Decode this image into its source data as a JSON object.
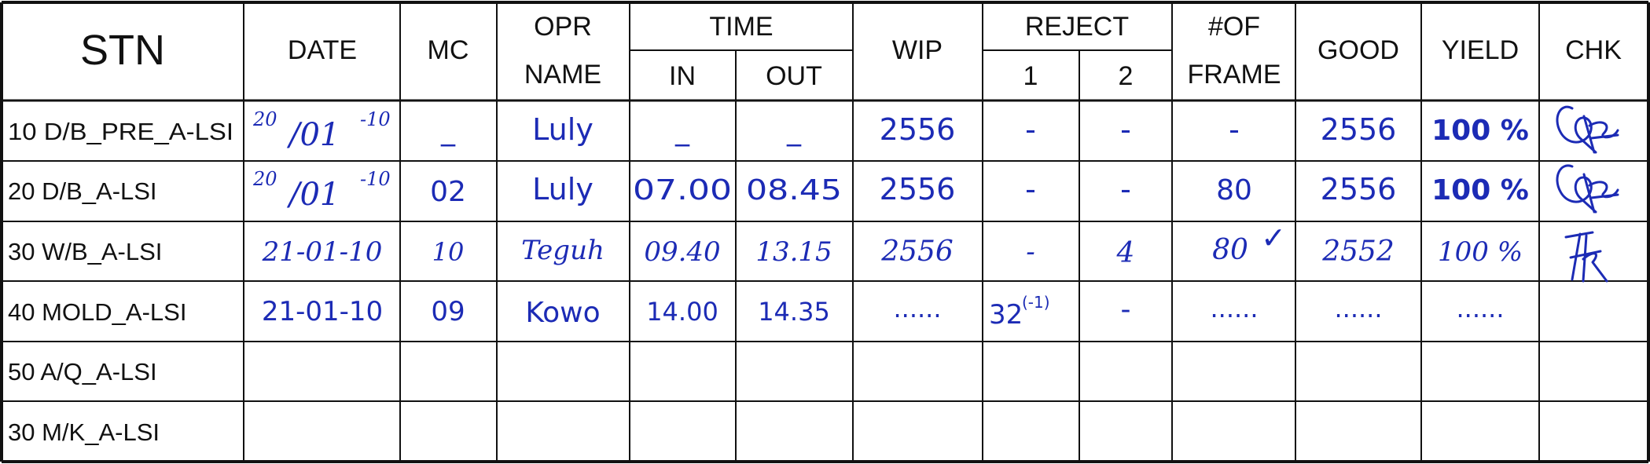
{
  "header": {
    "stn": "STN",
    "date": "DATE",
    "mc": "MC",
    "opr_line1": "OPR",
    "opr_line2": "NAME",
    "time": "TIME",
    "time_in": "IN",
    "time_out": "OUT",
    "wip": "WIP",
    "reject": "REJECT",
    "reject_1": "1",
    "reject_2": "2",
    "frame_line1": "#OF",
    "frame_line2": "FRAME",
    "good": "GOOD",
    "yield": "YIELD",
    "chk": "CHK"
  },
  "rows": [
    {
      "stn": "10 D/B_PRE_A-LSI",
      "date": {
        "day": "20",
        "month": "/01",
        "year": "-10"
      },
      "mc": "_",
      "opr": "Luly",
      "time_in": "_",
      "time_out": "_",
      "wip": "2556",
      "reject_1": "-",
      "reject_2": "-",
      "frame": "-",
      "good": "2556",
      "yield": "100 %",
      "chk": "signature"
    },
    {
      "stn": "20 D/B_A-LSI",
      "date": {
        "day": "20",
        "month": "/01",
        "year": "-10"
      },
      "mc": "02",
      "opr": "Luly",
      "time_in": "07.00",
      "time_out": "08.45",
      "wip": "2556",
      "reject_1": "-",
      "reject_2": "-",
      "frame": "80",
      "good": "2556",
      "yield": "100 %",
      "chk": "signature"
    },
    {
      "stn": "30 W/B_A-LSI",
      "date": "21-01-10",
      "mc": "10",
      "opr": "Teguh",
      "time_in": "09.40",
      "time_out": "13.15",
      "wip": "2556",
      "reject_1": "-",
      "reject_2": "4",
      "frame": "80",
      "frame_mark": "✓",
      "good": "2552",
      "yield": "100 %",
      "chk": "signature"
    },
    {
      "stn": "40 MOLD_A-LSI",
      "date": "21-01-10",
      "mc": "09",
      "opr": "Kowo",
      "time_in": "14.00",
      "time_out": "14.35",
      "wip": "......",
      "reject_1": "32",
      "reject_1_sup": "(-1)",
      "reject_2": "-",
      "frame": "......",
      "good": "......",
      "yield": "......",
      "chk": ""
    },
    {
      "stn": "50 A/Q_A-LSI"
    },
    {
      "stn": "30 M/K_A-LSI"
    }
  ],
  "colors": {
    "ink": "#1c2bb5",
    "grid": "#111111"
  }
}
